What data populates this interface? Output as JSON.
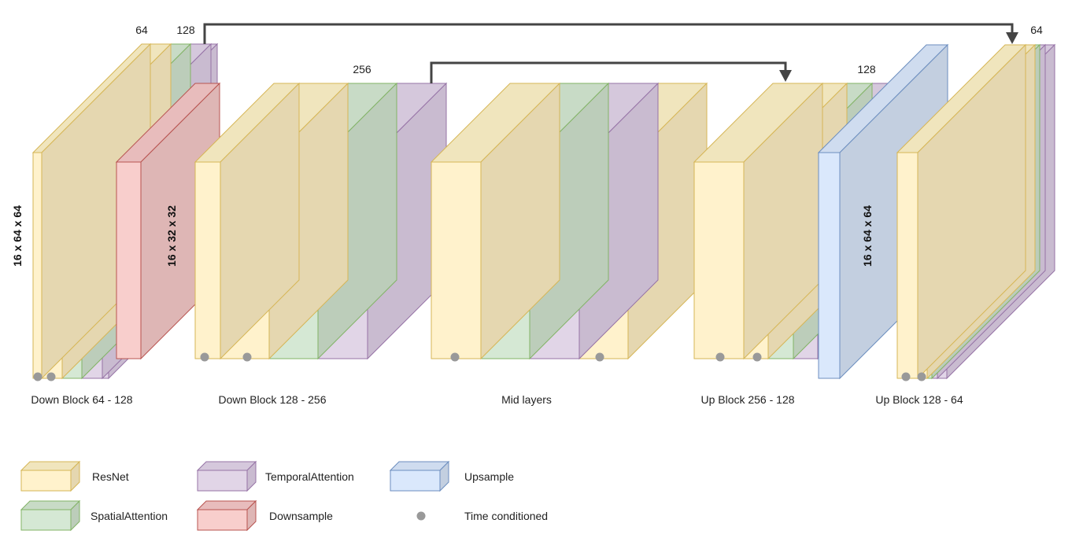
{
  "colors": {
    "resnet": {
      "front": "#fff2cc",
      "top": "#f0e5bd",
      "side": "#e5d7b0",
      "stroke": "#d6b656"
    },
    "spatial": {
      "front": "#d5e8d4",
      "top": "#c8dbc6",
      "side": "#bccdba",
      "stroke": "#82b366"
    },
    "temporal": {
      "front": "#e1d5e7",
      "top": "#d5c8dc",
      "side": "#c9bbd0",
      "stroke": "#9673a6"
    },
    "downsample": {
      "front": "#f8cecc",
      "top": "#e8bcbc",
      "side": "#deb6b5",
      "stroke": "#b85450"
    },
    "upsample": {
      "front": "#dae8fc",
      "top": "#cfdcef",
      "side": "#c3cfe0",
      "stroke": "#6c8ebf"
    },
    "time_dot": "#999999",
    "arrow": "#444444"
  },
  "blocks": {
    "down1": {
      "label": "Down Block 64 - 128",
      "dims": "16 x 64 x 64"
    },
    "downsample": {
      "dims": "16 x 32 x 32"
    },
    "down2": {
      "label": "Down Block 128 - 256"
    },
    "mid": {
      "label": "Mid layers"
    },
    "up1": {
      "label": "Up Block 256 - 128"
    },
    "upsample": {
      "dims": "16 x 64 x 64"
    },
    "up2": {
      "label": "Up Block 128 - 64"
    }
  },
  "channels": {
    "c64_left": "64",
    "c128_left": "128",
    "c256": "256",
    "c128_right": "128",
    "c64_right": "64"
  },
  "legend": [
    {
      "key": "resnet",
      "label": "ResNet"
    },
    {
      "key": "temporal",
      "label": "TemporalAttention"
    },
    {
      "key": "upsample",
      "label": "Upsample"
    },
    {
      "key": "spatial",
      "label": "SpatialAttention"
    },
    {
      "key": "downsample",
      "label": "Downsample"
    },
    {
      "key": "time",
      "label": "Time conditioned"
    }
  ]
}
